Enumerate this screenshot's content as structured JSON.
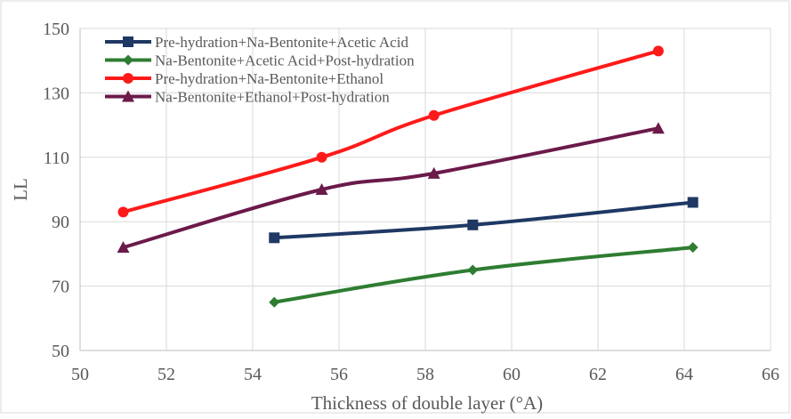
{
  "chart_data": {
    "type": "line",
    "title": "",
    "xlabel": "Thickness of double layer (°A)",
    "ylabel": "LL",
    "xlim": [
      50,
      66
    ],
    "ylim": [
      50,
      150
    ],
    "xticks": [
      "50",
      "52",
      "54",
      "56",
      "58",
      "60",
      "62",
      "64",
      "66"
    ],
    "yticks": [
      "50",
      "70",
      "90",
      "110",
      "130",
      "150"
    ],
    "grid": "horizontal",
    "legend_position": "top-left",
    "series": [
      {
        "name": "Pre-hydration+Na-Bentonite+Acetic Acid",
        "color": "#1f3864",
        "marker": "square",
        "x": [
          54.5,
          59.1,
          64.2
        ],
        "y": [
          85,
          89,
          96
        ]
      },
      {
        "name": "Na-Bentonite+Acetic Acid+Post-hydration",
        "color": "#2e7d32",
        "marker": "plus",
        "x": [
          54.5,
          59.1,
          64.2
        ],
        "y": [
          65,
          75,
          82
        ]
      },
      {
        "name": "Pre-hydration+Na-Bentonite+Ethanol",
        "color": "#ff1a1a",
        "marker": "circle",
        "x": [
          51.0,
          55.6,
          58.2,
          63.4
        ],
        "y": [
          93,
          110,
          123,
          143
        ]
      },
      {
        "name": "Na-Bentonite+Ethanol+Post-hydration",
        "color": "#6b1a4a",
        "marker": "triangle",
        "x": [
          51.0,
          55.6,
          58.2,
          63.4
        ],
        "y": [
          82,
          100,
          105,
          119
        ]
      }
    ]
  }
}
